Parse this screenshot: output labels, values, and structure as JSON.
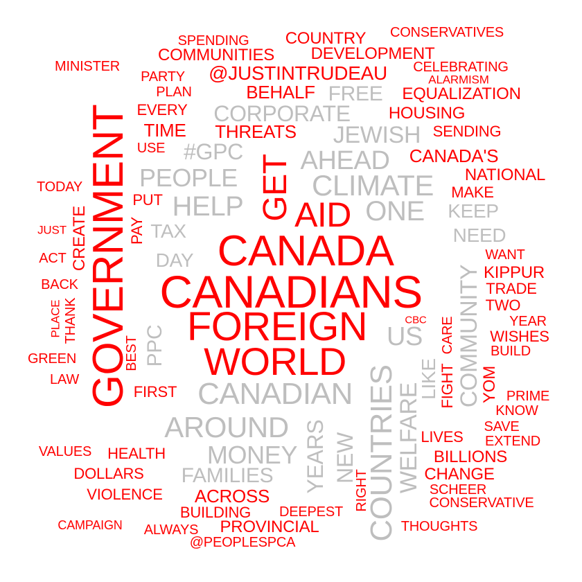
{
  "colors": {
    "red": "#ff0000",
    "gray": "#bebebe",
    "background": "#ffffff"
  },
  "words": [
    {
      "text": "CANADIANS",
      "color": "red"
    },
    {
      "text": "CANADA",
      "color": "red"
    },
    {
      "text": "GOVERNMENT",
      "color": "red"
    },
    {
      "text": "FOREIGN",
      "color": "red"
    },
    {
      "text": "WORLD",
      "color": "red"
    },
    {
      "text": "AID",
      "color": "red"
    },
    {
      "text": "GET",
      "color": "red"
    },
    {
      "text": "CANADIAN",
      "color": "gray"
    },
    {
      "text": "COUNTRIES",
      "color": "gray"
    },
    {
      "text": "CLIMATE",
      "color": "gray"
    },
    {
      "text": "AHEAD",
      "color": "gray"
    },
    {
      "text": "AROUND",
      "color": "gray"
    },
    {
      "text": "HELP",
      "color": "gray"
    },
    {
      "text": "PEOPLE",
      "color": "gray"
    },
    {
      "text": "ONE",
      "color": "gray"
    },
    {
      "text": "US",
      "color": "gray"
    },
    {
      "text": "MONEY",
      "color": "gray"
    },
    {
      "text": "WELFARE",
      "color": "gray"
    },
    {
      "text": "COMMUNITY",
      "color": "gray"
    },
    {
      "text": "CORPORATE",
      "color": "gray"
    },
    {
      "text": "JEWISH",
      "color": "gray"
    },
    {
      "text": "FAMILIES",
      "color": "gray"
    },
    {
      "text": "YEARS",
      "color": "gray"
    },
    {
      "text": "NEW",
      "color": "gray"
    },
    {
      "text": "#GPC",
      "color": "gray"
    },
    {
      "text": "FREE",
      "color": "gray"
    },
    {
      "text": "KEEP",
      "color": "gray"
    },
    {
      "text": "NEED",
      "color": "gray"
    },
    {
      "text": "TAX",
      "color": "gray"
    },
    {
      "text": "DAY",
      "color": "gray"
    },
    {
      "text": "PPC",
      "color": "gray"
    },
    {
      "text": "LIKE",
      "color": "gray"
    },
    {
      "text": "@JUSTINTRUDEAU",
      "color": "red"
    },
    {
      "text": "BEHALF",
      "color": "red"
    },
    {
      "text": "THREATS",
      "color": "red"
    },
    {
      "text": "CANADA'S",
      "color": "red"
    },
    {
      "text": "TIME",
      "color": "red"
    },
    {
      "text": "EQUALIZATION",
      "color": "red"
    },
    {
      "text": "HOUSING",
      "color": "red"
    },
    {
      "text": "NATIONAL",
      "color": "red"
    },
    {
      "text": "CREATE",
      "color": "red"
    },
    {
      "text": "COUNTRY",
      "color": "red"
    },
    {
      "text": "DEVELOPMENT",
      "color": "red"
    },
    {
      "text": "COMMUNITIES",
      "color": "red"
    },
    {
      "text": "KIPPUR",
      "color": "red"
    },
    {
      "text": "FIGHT",
      "color": "red"
    },
    {
      "text": "ACROSS",
      "color": "red"
    },
    {
      "text": "PROVINCIAL",
      "color": "red"
    },
    {
      "text": "BILLIONS",
      "color": "red"
    },
    {
      "text": "CHANGE",
      "color": "red"
    },
    {
      "text": "YOM",
      "color": "red"
    },
    {
      "text": "SENDING",
      "color": "red"
    },
    {
      "text": "MAKE",
      "color": "red"
    },
    {
      "text": "EVERY",
      "color": "red"
    },
    {
      "text": "FIRST",
      "color": "red"
    },
    {
      "text": "HEALTH",
      "color": "red"
    },
    {
      "text": "DOLLARS",
      "color": "red"
    },
    {
      "text": "VIOLENCE",
      "color": "red"
    },
    {
      "text": "BUILDING",
      "color": "red"
    },
    {
      "text": "LIVES",
      "color": "red"
    },
    {
      "text": "TRADE",
      "color": "red"
    },
    {
      "text": "TWO",
      "color": "red"
    },
    {
      "text": "WISHES",
      "color": "red"
    },
    {
      "text": "CONSERVATIVES",
      "color": "red"
    },
    {
      "text": "SPENDING",
      "color": "red"
    },
    {
      "text": "CELEBRATING",
      "color": "red"
    },
    {
      "text": "PUT",
      "color": "red"
    },
    {
      "text": "PAY",
      "color": "red"
    },
    {
      "text": "CARE",
      "color": "red"
    },
    {
      "text": "RIGHT",
      "color": "red"
    },
    {
      "text": "BEST",
      "color": "red"
    },
    {
      "text": "THANK",
      "color": "red"
    },
    {
      "text": "TODAY",
      "color": "red"
    },
    {
      "text": "BACK",
      "color": "red"
    },
    {
      "text": "ACT",
      "color": "red"
    },
    {
      "text": "GREEN",
      "color": "red"
    },
    {
      "text": "LAW",
      "color": "red"
    },
    {
      "text": "VALUES",
      "color": "red"
    },
    {
      "text": "PARTY",
      "color": "red"
    },
    {
      "text": "MINISTER",
      "color": "red"
    },
    {
      "text": "PLAN",
      "color": "red"
    },
    {
      "text": "USE",
      "color": "red"
    },
    {
      "text": "WANT",
      "color": "red"
    },
    {
      "text": "YEAR",
      "color": "red"
    },
    {
      "text": "BUILD",
      "color": "red"
    },
    {
      "text": "PRIME",
      "color": "red"
    },
    {
      "text": "KNOW",
      "color": "red"
    },
    {
      "text": "SAVE",
      "color": "red"
    },
    {
      "text": "EXTEND",
      "color": "red"
    },
    {
      "text": "SCHEER",
      "color": "red"
    },
    {
      "text": "CONSERVATIVE",
      "color": "red"
    },
    {
      "text": "DEEPEST",
      "color": "red"
    },
    {
      "text": "THOUGHTS",
      "color": "red"
    },
    {
      "text": "@PEOPLESPCA",
      "color": "red"
    },
    {
      "text": "ALWAYS",
      "color": "red"
    },
    {
      "text": "CAMPAIGN",
      "color": "red"
    },
    {
      "text": "ALARMISM",
      "color": "red"
    },
    {
      "text": "JUST",
      "color": "red"
    },
    {
      "text": "PLACE",
      "color": "red"
    },
    {
      "text": "CBC",
      "color": "red"
    }
  ]
}
